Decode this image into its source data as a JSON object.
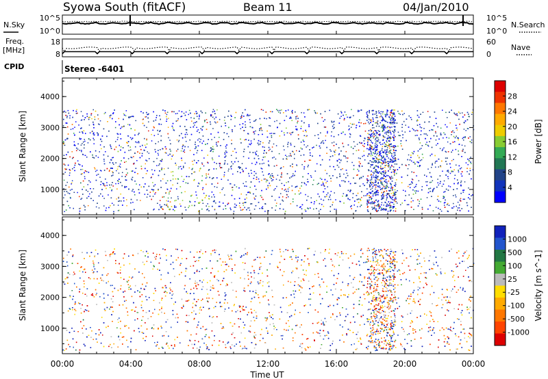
{
  "header": {
    "title": "Syowa South (fitACF)",
    "beam": "Beam 11",
    "date": "04/Jan/2010"
  },
  "strip_labels": {
    "nsky": "N.Sky",
    "nsearch": "N.Search",
    "freq_line1": "Freq.",
    "freq_line2": "[MHz]",
    "nave": "Nave",
    "cpid": "CPID",
    "cpid_value": "Stereo -6401"
  },
  "strip_ticks": {
    "noise_left_top": "10^5",
    "noise_left_bottom": "10^0",
    "noise_right_top": "10^5",
    "noise_right_bottom": "10^0",
    "freq_left_top": "18",
    "freq_left_bottom": "8",
    "nave_right_top": "60",
    "nave_right_bottom": "0"
  },
  "colorbars": {
    "power": {
      "label": "Power [dB]",
      "ticks": [
        "28",
        "24",
        "20",
        "16",
        "12",
        "8",
        "4"
      ],
      "colors": [
        "#dd0000",
        "#ee3300",
        "#ff7700",
        "#ffaa00",
        "#eecc00",
        "#88cc33",
        "#33aa55",
        "#227755",
        "#224488",
        "#1133bb",
        "#0000ff"
      ]
    },
    "velocity": {
      "label": "Velocity [m s^-1]",
      "ticks": [
        "1000",
        "500",
        "100",
        "25",
        "-25",
        "-100",
        "-500",
        "-1000"
      ],
      "colors": [
        "#1122bb",
        "#2255cc",
        "#227744",
        "#44aa33",
        "#bbbbbb",
        "#ffdd00",
        "#ffaa00",
        "#ff7700",
        "#ff4400",
        "#dd0000"
      ]
    }
  },
  "chart_data": [
    {
      "type": "heatmap",
      "name": "Power",
      "ylabel": "Slant Range [km]",
      "xlabel": "Time UT",
      "xlim": [
        "00:00",
        "24:00"
      ],
      "ylim": [
        180,
        4600
      ],
      "x_ticks": [
        "00:00",
        "04:00",
        "08:00",
        "12:00",
        "16:00",
        "20:00",
        "00:00"
      ],
      "y_ticks": [
        "1000",
        "2000",
        "3000",
        "4000"
      ],
      "colorbar": "Power [dB]",
      "grid": false
    },
    {
      "type": "heatmap",
      "name": "Velocity",
      "ylabel": "Slant Range [km]",
      "xlabel": "Time UT",
      "xlim": [
        "00:00",
        "24:00"
      ],
      "ylim": [
        180,
        4600
      ],
      "x_ticks": [
        "00:00",
        "04:00",
        "08:00",
        "12:00",
        "16:00",
        "20:00",
        "00:00"
      ],
      "y_ticks": [
        "1000",
        "2000",
        "3000",
        "4000"
      ],
      "colorbar": "Velocity [m s^-1]",
      "grid": false
    }
  ]
}
